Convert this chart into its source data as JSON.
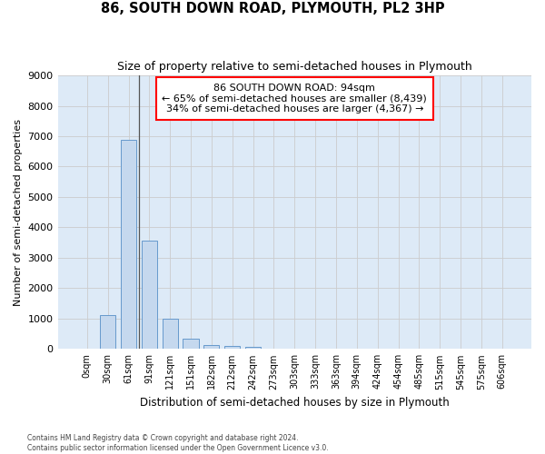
{
  "title": "86, SOUTH DOWN ROAD, PLYMOUTH, PL2 3HP",
  "subtitle": "Size of property relative to semi-detached houses in Plymouth",
  "xlabel": "Distribution of semi-detached houses by size in Plymouth",
  "ylabel": "Number of semi-detached properties",
  "bar_labels": [
    "0sqm",
    "30sqm",
    "61sqm",
    "91sqm",
    "121sqm",
    "151sqm",
    "182sqm",
    "212sqm",
    "242sqm",
    "273sqm",
    "303sqm",
    "333sqm",
    "363sqm",
    "394sqm",
    "424sqm",
    "454sqm",
    "485sqm",
    "515sqm",
    "545sqm",
    "575sqm",
    "606sqm"
  ],
  "bar_values": [
    0,
    1120,
    6880,
    3560,
    990,
    330,
    140,
    110,
    80,
    0,
    0,
    0,
    0,
    0,
    0,
    0,
    0,
    0,
    0,
    0,
    0
  ],
  "bar_color": "#c5d8ee",
  "bar_edge_color": "#6699cc",
  "annotation_text_line1": "86 SOUTH DOWN ROAD: 94sqm",
  "annotation_text_line2": "← 65% of semi-detached houses are smaller (8,439)",
  "annotation_text_line3": "34% of semi-detached houses are larger (4,367) →",
  "ylim": [
    0,
    9000
  ],
  "yticks": [
    0,
    1000,
    2000,
    3000,
    4000,
    5000,
    6000,
    7000,
    8000,
    9000
  ],
  "grid_color": "#cccccc",
  "bg_color": "#ddeaf7",
  "footer_line1": "Contains HM Land Registry data © Crown copyright and database right 2024.",
  "footer_line2": "Contains public sector information licensed under the Open Government Licence v3.0."
}
